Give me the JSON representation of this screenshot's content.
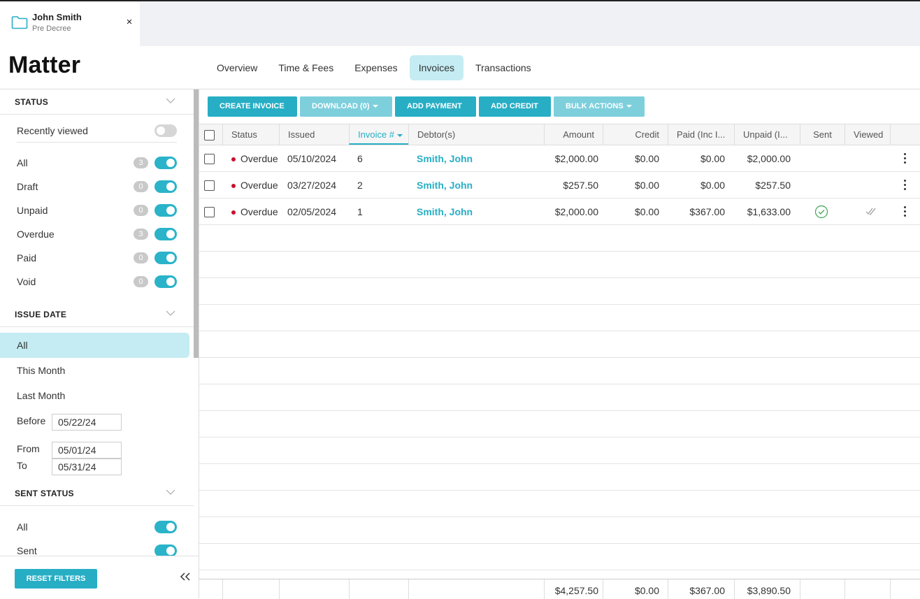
{
  "matter_tab": {
    "title": "John Smith",
    "subtitle": "Pre Decree",
    "close": "×"
  },
  "page_title": "Matter",
  "nav": {
    "tabs": [
      "Overview",
      "Time & Fees",
      "Expenses",
      "Invoices",
      "Transactions"
    ],
    "active": "Invoices"
  },
  "sidebar": {
    "status": {
      "title": "STATUS",
      "recently_viewed": {
        "label": "Recently viewed",
        "on": false
      },
      "items": [
        {
          "label": "All",
          "count": "3",
          "on": true
        },
        {
          "label": "Draft",
          "count": "0",
          "on": true
        },
        {
          "label": "Unpaid",
          "count": "0",
          "on": true
        },
        {
          "label": "Overdue",
          "count": "3",
          "on": true
        },
        {
          "label": "Paid",
          "count": "0",
          "on": true
        },
        {
          "label": "Void",
          "count": "0",
          "on": true
        }
      ]
    },
    "issue_date": {
      "title": "ISSUE DATE",
      "options": [
        "All",
        "This Month",
        "Last Month"
      ],
      "active": "All",
      "before_label": "Before",
      "before_value": "05/22/24",
      "from_label": "From",
      "from_value": "05/01/24",
      "to_label": "To",
      "to_value": "05/31/24"
    },
    "sent_status": {
      "title": "SENT STATUS",
      "items": [
        {
          "label": "All",
          "on": true
        },
        {
          "label": "Sent",
          "on": true
        }
      ]
    },
    "reset_label": "RESET FILTERS"
  },
  "toolbar": {
    "create_invoice": "CREATE INVOICE",
    "download": "DOWNLOAD (0)",
    "add_payment": "ADD PAYMENT",
    "add_credit": "ADD CREDIT",
    "bulk_actions": "BULK ACTIONS"
  },
  "table": {
    "columns": {
      "status": "Status",
      "issued": "Issued",
      "invoice": "Invoice #",
      "debtor": "Debtor(s)",
      "amount": "Amount",
      "credit": "Credit",
      "paid": "Paid (Inc I...",
      "unpaid": "Unpaid (I...",
      "sent": "Sent",
      "viewed": "Viewed"
    },
    "rows": [
      {
        "status": "Overdue",
        "issued": "05/10/2024",
        "invoice": "6",
        "debtor": "Smith, John",
        "amount": "$2,000.00",
        "credit": "$0.00",
        "paid": "$0.00",
        "unpaid": "$2,000.00",
        "sent": false,
        "viewed": false
      },
      {
        "status": "Overdue",
        "issued": "03/27/2024",
        "invoice": "2",
        "debtor": "Smith, John",
        "amount": "$257.50",
        "credit": "$0.00",
        "paid": "$0.00",
        "unpaid": "$257.50",
        "sent": false,
        "viewed": false
      },
      {
        "status": "Overdue",
        "issued": "02/05/2024",
        "invoice": "1",
        "debtor": "Smith, John",
        "amount": "$2,000.00",
        "credit": "$0.00",
        "paid": "$367.00",
        "unpaid": "$1,633.00",
        "sent": true,
        "viewed": true
      }
    ],
    "totals": {
      "amount": "$4,257.50",
      "credit": "$0.00",
      "paid": "$367.00",
      "unpaid": "$3,890.50"
    }
  },
  "colors": {
    "accent": "#27aec5",
    "accent_light": "#7dcfdc",
    "active_tab_bg": "#c4ecf2",
    "overdue_dot": "#c8102e",
    "sent_check": "#3aa655"
  }
}
